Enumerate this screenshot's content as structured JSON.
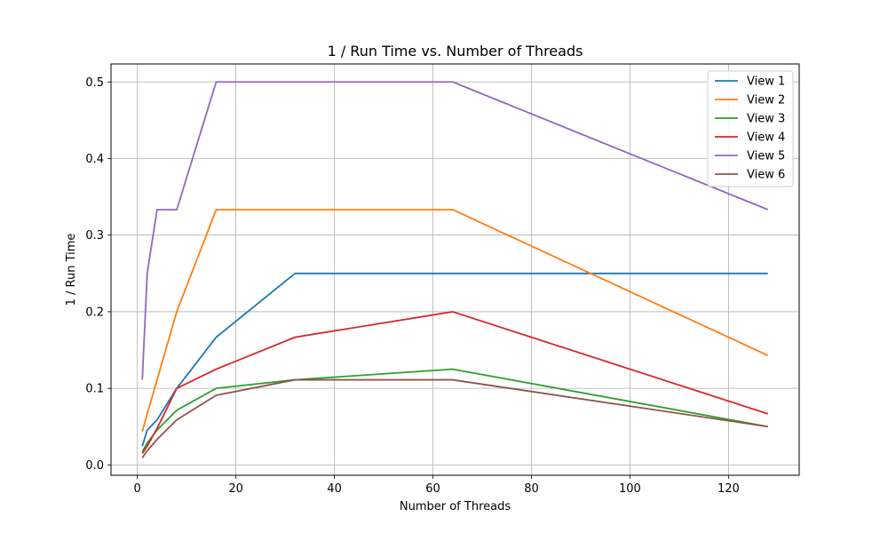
{
  "chart_data": {
    "type": "line",
    "title": "1 / Run Time vs. Number of Threads",
    "xlabel": "Number of Threads",
    "ylabel": "1 / Run Time",
    "xlim": [
      -5.35,
      134.35
    ],
    "ylim": [
      -0.0135,
      0.5235
    ],
    "xticks": [
      0,
      20,
      40,
      60,
      80,
      100,
      120
    ],
    "yticks": [
      0.0,
      0.1,
      0.2,
      0.3,
      0.4,
      0.5
    ],
    "xtick_labels": [
      "0",
      "20",
      "40",
      "60",
      "80",
      "100",
      "120"
    ],
    "ytick_labels": [
      "0.0",
      "0.1",
      "0.2",
      "0.3",
      "0.4",
      "0.5"
    ],
    "grid": true,
    "legend_position": "top-right",
    "x": [
      1,
      2,
      4,
      8,
      16,
      32,
      64,
      128
    ],
    "series": [
      {
        "name": "View 1",
        "color": "#1f77b4",
        "values": [
          0.0244,
          0.0455,
          0.0588,
          0.1,
          0.1667,
          0.25,
          0.25,
          0.25
        ]
      },
      {
        "name": "View 2",
        "color": "#ff7f0e",
        "values": [
          0.0435,
          0.0667,
          0.1111,
          0.2,
          0.3333,
          0.3333,
          0.3333,
          0.1429
        ]
      },
      {
        "name": "View 3",
        "color": "#2ca02c",
        "values": [
          0.0172,
          0.0286,
          0.0455,
          0.0714,
          0.1,
          0.1111,
          0.125,
          0.05
        ]
      },
      {
        "name": "View 4",
        "color": "#d62728",
        "values": [
          0.0149,
          0.0244,
          0.0476,
          0.1,
          0.125,
          0.1667,
          0.2,
          0.0667
        ]
      },
      {
        "name": "View 5",
        "color": "#9467bd",
        "values": [
          0.1111,
          0.25,
          0.3333,
          0.3333,
          0.5,
          0.5,
          0.5,
          0.3333
        ]
      },
      {
        "name": "View 6",
        "color": "#8c564b",
        "values": [
          0.0093,
          0.0185,
          0.0333,
          0.0588,
          0.0909,
          0.1111,
          0.1111,
          0.05
        ]
      }
    ]
  }
}
